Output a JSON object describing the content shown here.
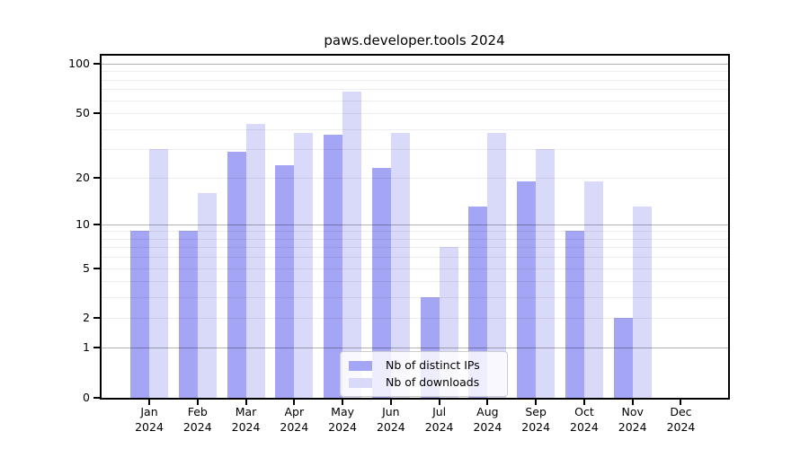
{
  "chart_data": {
    "type": "bar",
    "title": "paws.developer.tools 2024",
    "categories": [
      "Jan",
      "Feb",
      "Mar",
      "Apr",
      "May",
      "Jun",
      "Jul",
      "Aug",
      "Sep",
      "Oct",
      "Nov",
      "Dec"
    ],
    "year_label": "2024",
    "series": [
      {
        "name": "Nb of distinct IPs",
        "color": "#a5a5f5",
        "values": [
          9,
          9,
          29,
          24,
          37,
          23,
          3,
          13,
          19,
          9,
          2,
          0
        ]
      },
      {
        "name": "Nb of downloads",
        "color": "#d9d9f9",
        "values": [
          30,
          16,
          43,
          38,
          68,
          38,
          7,
          38,
          30,
          19,
          13,
          0
        ]
      }
    ],
    "y_scale": "log1p",
    "ylim": [
      0,
      112
    ],
    "y_ticks": [
      0,
      1,
      2,
      5,
      10,
      20,
      50,
      100
    ],
    "y_major_gridlines": [
      1,
      10,
      100
    ],
    "y_minor_gridlines": [
      2,
      3,
      4,
      5,
      6,
      7,
      8,
      9,
      20,
      30,
      40,
      50,
      60,
      70,
      80,
      90
    ],
    "grid": true,
    "legend_position": "lower center",
    "colors": {
      "axis": "#000000",
      "major_grid": "#b3b3b3",
      "minor_grid": "#ededed",
      "background": "#ffffff"
    }
  }
}
